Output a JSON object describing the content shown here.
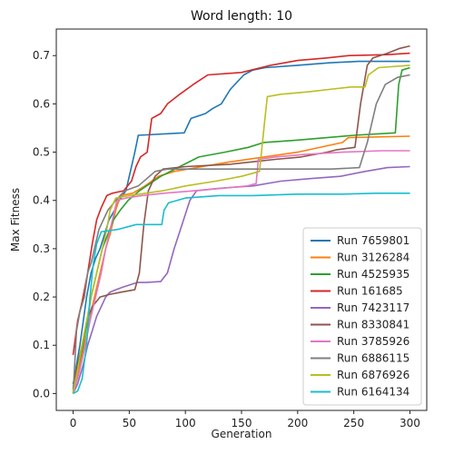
{
  "chart_data": {
    "type": "line",
    "title": "Word length: 10",
    "xlabel": "Generation",
    "ylabel": "Max Fitness",
    "xlim": [
      -15,
      315
    ],
    "ylim": [
      -0.035,
      0.755
    ],
    "xticks": [
      0,
      50,
      100,
      150,
      200,
      250,
      300
    ],
    "yticks": [
      0.0,
      0.1,
      0.2,
      0.3,
      0.4,
      0.5,
      0.6,
      0.7
    ],
    "grid": false,
    "legend": "lower-right",
    "series": [
      {
        "name": "Run 7659801",
        "color": "#1f77b4",
        "points": [
          [
            0,
            0.01
          ],
          [
            3,
            0.06
          ],
          [
            6,
            0.1
          ],
          [
            9,
            0.15
          ],
          [
            12,
            0.2
          ],
          [
            16,
            0.25
          ],
          [
            20,
            0.28
          ],
          [
            24,
            0.3
          ],
          [
            28,
            0.33
          ],
          [
            32,
            0.36
          ],
          [
            37,
            0.38
          ],
          [
            41,
            0.4
          ],
          [
            47,
            0.42
          ],
          [
            51,
            0.46
          ],
          [
            55,
            0.5
          ],
          [
            58,
            0.535
          ],
          [
            99,
            0.54
          ],
          [
            105,
            0.57
          ],
          [
            118,
            0.58
          ],
          [
            124,
            0.59
          ],
          [
            132,
            0.6
          ],
          [
            140,
            0.63
          ],
          [
            152,
            0.66
          ],
          [
            160,
            0.67
          ],
          [
            171,
            0.675
          ],
          [
            200,
            0.68
          ],
          [
            228,
            0.685
          ],
          [
            254,
            0.688
          ],
          [
            300,
            0.688
          ]
        ]
      },
      {
        "name": "Run 3126284",
        "color": "#ff7f0e",
        "points": [
          [
            0,
            0.0
          ],
          [
            4,
            0.04
          ],
          [
            8,
            0.08
          ],
          [
            12,
            0.12
          ],
          [
            16,
            0.17
          ],
          [
            20,
            0.21
          ],
          [
            25,
            0.26
          ],
          [
            29,
            0.3
          ],
          [
            33,
            0.33
          ],
          [
            38,
            0.38
          ],
          [
            42,
            0.41
          ],
          [
            53,
            0.415
          ],
          [
            64,
            0.43
          ],
          [
            76,
            0.45
          ],
          [
            90,
            0.46
          ],
          [
            115,
            0.47
          ],
          [
            140,
            0.48
          ],
          [
            170,
            0.49
          ],
          [
            200,
            0.5
          ],
          [
            240,
            0.52
          ],
          [
            245,
            0.53
          ],
          [
            300,
            0.533
          ]
        ]
      },
      {
        "name": "Run 4525935",
        "color": "#2ca02c",
        "points": [
          [
            0,
            0.02
          ],
          [
            4,
            0.05
          ],
          [
            8,
            0.09
          ],
          [
            12,
            0.14
          ],
          [
            16,
            0.2
          ],
          [
            21,
            0.25
          ],
          [
            26,
            0.3
          ],
          [
            31,
            0.33
          ],
          [
            36,
            0.36
          ],
          [
            42,
            0.38
          ],
          [
            49,
            0.4
          ],
          [
            59,
            0.42
          ],
          [
            78,
            0.45
          ],
          [
            95,
            0.47
          ],
          [
            112,
            0.49
          ],
          [
            135,
            0.5
          ],
          [
            156,
            0.51
          ],
          [
            170,
            0.52
          ],
          [
            200,
            0.525
          ],
          [
            226,
            0.53
          ],
          [
            250,
            0.535
          ],
          [
            287,
            0.54
          ],
          [
            290,
            0.64
          ],
          [
            293,
            0.67
          ],
          [
            300,
            0.675
          ]
        ]
      },
      {
        "name": "Run 161685",
        "color": "#d62728",
        "points": [
          [
            0,
            0.08
          ],
          [
            4,
            0.15
          ],
          [
            8,
            0.19
          ],
          [
            13,
            0.25
          ],
          [
            17,
            0.31
          ],
          [
            21,
            0.36
          ],
          [
            25,
            0.385
          ],
          [
            30,
            0.41
          ],
          [
            35,
            0.415
          ],
          [
            45,
            0.42
          ],
          [
            52,
            0.44
          ],
          [
            56,
            0.47
          ],
          [
            60,
            0.49
          ],
          [
            66,
            0.5
          ],
          [
            70,
            0.57
          ],
          [
            78,
            0.58
          ],
          [
            84,
            0.6
          ],
          [
            95,
            0.62
          ],
          [
            107,
            0.64
          ],
          [
            120,
            0.66
          ],
          [
            150,
            0.665
          ],
          [
            176,
            0.68
          ],
          [
            200,
            0.69
          ],
          [
            225,
            0.695
          ],
          [
            246,
            0.7
          ],
          [
            280,
            0.702
          ],
          [
            300,
            0.705
          ]
        ]
      },
      {
        "name": "Run 7423117",
        "color": "#9467bd",
        "points": [
          [
            0,
            0.0
          ],
          [
            4,
            0.02
          ],
          [
            9,
            0.06
          ],
          [
            13,
            0.1
          ],
          [
            17,
            0.13
          ],
          [
            21,
            0.16
          ],
          [
            25,
            0.18
          ],
          [
            29,
            0.2
          ],
          [
            33,
            0.21
          ],
          [
            38,
            0.215
          ],
          [
            44,
            0.22
          ],
          [
            57,
            0.23
          ],
          [
            65,
            0.23
          ],
          [
            78,
            0.232
          ],
          [
            84,
            0.25
          ],
          [
            90,
            0.3
          ],
          [
            97,
            0.35
          ],
          [
            104,
            0.4
          ],
          [
            110,
            0.42
          ],
          [
            130,
            0.425
          ],
          [
            160,
            0.43
          ],
          [
            185,
            0.44
          ],
          [
            210,
            0.445
          ],
          [
            238,
            0.45
          ],
          [
            260,
            0.46
          ],
          [
            280,
            0.468
          ],
          [
            300,
            0.47
          ]
        ]
      },
      {
        "name": "Run 8330841",
        "color": "#8c564b",
        "points": [
          [
            0,
            0.02
          ],
          [
            4,
            0.06
          ],
          [
            8,
            0.1
          ],
          [
            12,
            0.15
          ],
          [
            17,
            0.18
          ],
          [
            24,
            0.2
          ],
          [
            32,
            0.205
          ],
          [
            43,
            0.21
          ],
          [
            55,
            0.215
          ],
          [
            59,
            0.25
          ],
          [
            63,
            0.35
          ],
          [
            67,
            0.42
          ],
          [
            73,
            0.45
          ],
          [
            80,
            0.465
          ],
          [
            100,
            0.47
          ],
          [
            140,
            0.475
          ],
          [
            160,
            0.48
          ],
          [
            180,
            0.485
          ],
          [
            203,
            0.49
          ],
          [
            226,
            0.5
          ],
          [
            235,
            0.505
          ],
          [
            251,
            0.51
          ],
          [
            256,
            0.6
          ],
          [
            262,
            0.68
          ],
          [
            267,
            0.695
          ],
          [
            280,
            0.705
          ],
          [
            291,
            0.715
          ],
          [
            300,
            0.72
          ]
        ]
      },
      {
        "name": "Run 3785926",
        "color": "#e377c2",
        "points": [
          [
            0,
            0.0
          ],
          [
            5,
            0.04
          ],
          [
            10,
            0.09
          ],
          [
            15,
            0.15
          ],
          [
            20,
            0.2
          ],
          [
            25,
            0.25
          ],
          [
            29,
            0.3
          ],
          [
            34,
            0.35
          ],
          [
            39,
            0.4
          ],
          [
            47,
            0.405
          ],
          [
            61,
            0.41
          ],
          [
            81,
            0.415
          ],
          [
            108,
            0.42
          ],
          [
            132,
            0.425
          ],
          [
            155,
            0.43
          ],
          [
            163,
            0.435
          ],
          [
            165,
            0.485
          ],
          [
            180,
            0.49
          ],
          [
            205,
            0.495
          ],
          [
            240,
            0.5
          ],
          [
            275,
            0.503
          ],
          [
            300,
            0.503
          ]
        ]
      },
      {
        "name": "Run 6886115",
        "color": "#7f7f7f",
        "points": [
          [
            0,
            0.0
          ],
          [
            3,
            0.13
          ],
          [
            6,
            0.17
          ],
          [
            10,
            0.2
          ],
          [
            13,
            0.25
          ],
          [
            16,
            0.27
          ],
          [
            19,
            0.3
          ],
          [
            23,
            0.34
          ],
          [
            27,
            0.36
          ],
          [
            31,
            0.38
          ],
          [
            38,
            0.4
          ],
          [
            46,
            0.42
          ],
          [
            58,
            0.43
          ],
          [
            68,
            0.45
          ],
          [
            73,
            0.46
          ],
          [
            84,
            0.465
          ],
          [
            110,
            0.465
          ],
          [
            150,
            0.465
          ],
          [
            200,
            0.465
          ],
          [
            230,
            0.465
          ],
          [
            255,
            0.468
          ],
          [
            262,
            0.52
          ],
          [
            270,
            0.6
          ],
          [
            278,
            0.64
          ],
          [
            289,
            0.655
          ],
          [
            300,
            0.66
          ]
        ]
      },
      {
        "name": "Run 6876926",
        "color": "#bcbd22",
        "points": [
          [
            0,
            0.0
          ],
          [
            4,
            0.05
          ],
          [
            8,
            0.1
          ],
          [
            12,
            0.15
          ],
          [
            16,
            0.2
          ],
          [
            21,
            0.25
          ],
          [
            26,
            0.3
          ],
          [
            30,
            0.34
          ],
          [
            33,
            0.38
          ],
          [
            38,
            0.405
          ],
          [
            50,
            0.41
          ],
          [
            80,
            0.42
          ],
          [
            100,
            0.43
          ],
          [
            127,
            0.44
          ],
          [
            150,
            0.45
          ],
          [
            166,
            0.46
          ],
          [
            170,
            0.55
          ],
          [
            173,
            0.615
          ],
          [
            185,
            0.62
          ],
          [
            210,
            0.625
          ],
          [
            228,
            0.63
          ],
          [
            248,
            0.635
          ],
          [
            260,
            0.635
          ],
          [
            263,
            0.66
          ],
          [
            272,
            0.675
          ],
          [
            300,
            0.68
          ]
        ]
      },
      {
        "name": "Run 6164134",
        "color": "#17becf",
        "points": [
          [
            0,
            0.0
          ],
          [
            4,
            0.005
          ],
          [
            8,
            0.03
          ],
          [
            12,
            0.1
          ],
          [
            15,
            0.2
          ],
          [
            18,
            0.27
          ],
          [
            21,
            0.31
          ],
          [
            25,
            0.335
          ],
          [
            40,
            0.34
          ],
          [
            56,
            0.35
          ],
          [
            66,
            0.35
          ],
          [
            79,
            0.35
          ],
          [
            81,
            0.38
          ],
          [
            85,
            0.395
          ],
          [
            100,
            0.405
          ],
          [
            130,
            0.41
          ],
          [
            160,
            0.41
          ],
          [
            200,
            0.413
          ],
          [
            240,
            0.413
          ],
          [
            270,
            0.415
          ],
          [
            300,
            0.415
          ]
        ]
      }
    ]
  }
}
